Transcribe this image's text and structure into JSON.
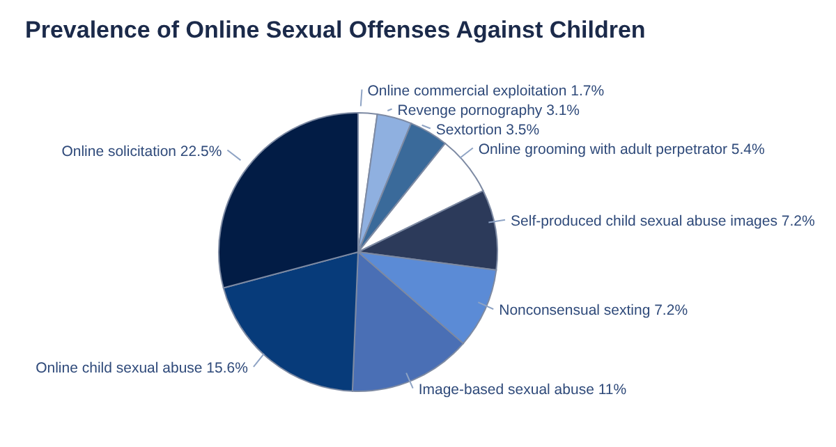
{
  "chart_data": {
    "type": "pie",
    "title": "Prevalence of Online Sexual Offenses Against Children",
    "categories": [
      "Online commercial exploitation",
      "Revenge pornography",
      "Sextortion",
      "Online grooming with adult perpetrator",
      "Self-produced child sexual abuse images",
      "Nonconsensual sexting",
      "Image-based sexual abuse",
      "Online child sexual abuse",
      "Online solicitation"
    ],
    "values": [
      1.7,
      3.1,
      3.5,
      5.4,
      7.2,
      7.2,
      11,
      15.6,
      22.5
    ],
    "value_labels": [
      "1.7%",
      "3.1%",
      "3.5%",
      "5.4%",
      "7.2%",
      "7.2%",
      "11%",
      "15.6%",
      "22.5%"
    ],
    "colors": [
      "#ffffff",
      "#8fb0e0",
      "#3a6a9a",
      "#ffffff",
      "#2c3a5a",
      "#5b8bd6",
      "#4a6fb5",
      "#073b7a",
      "#021c45"
    ]
  }
}
